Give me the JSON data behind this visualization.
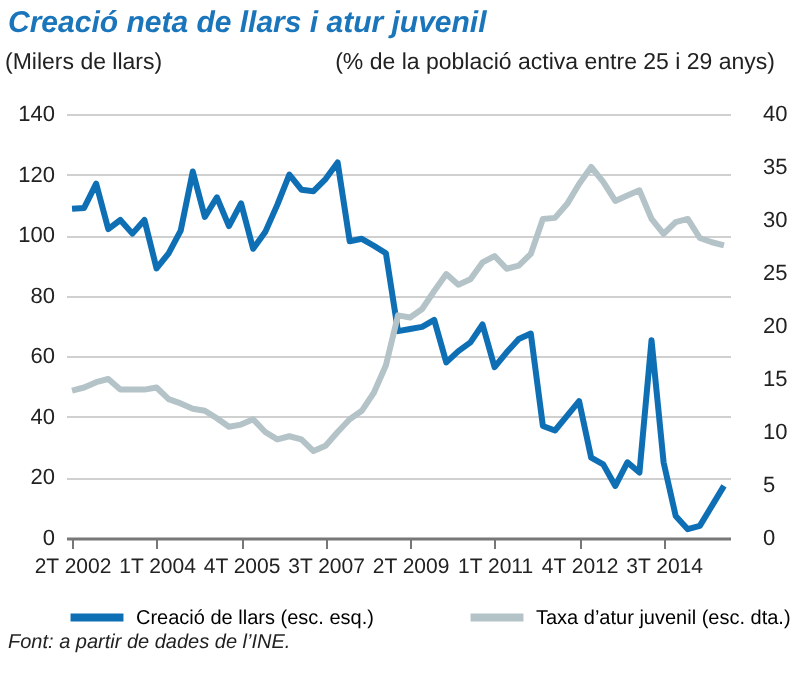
{
  "chart_data": {
    "type": "line",
    "title": "Creació neta de llars i atur juvenil",
    "ylabel": "(Milers de llars)",
    "y2label": "(% de la població activa entre 25 i 29 anys)",
    "categories": [
      "2T 2002",
      null,
      null,
      null,
      null,
      null,
      null,
      "1T 2004",
      null,
      null,
      null,
      null,
      null,
      null,
      "4T 2005",
      null,
      null,
      null,
      null,
      null,
      null,
      "3T 2007",
      null,
      null,
      null,
      null,
      null,
      null,
      "2T 2009",
      null,
      null,
      null,
      null,
      null,
      null,
      "1T 2011",
      null,
      null,
      null,
      null,
      null,
      null,
      "4T 2012",
      null,
      null,
      null,
      null,
      null,
      null,
      "3T 2014",
      null,
      null,
      null,
      null,
      null
    ],
    "series": [
      {
        "name": "Creació de llars (esc. esq.)",
        "color": "#0f6fb5",
        "values": [
          108.7,
          109,
          117,
          102,
          105,
          100.5,
          105,
          89,
          94,
          101.5,
          121,
          106,
          112.5,
          103,
          110.5,
          95.5,
          101,
          110,
          120,
          115,
          114.5,
          118.5,
          124,
          98,
          98.8,
          96.5,
          94,
          68.3,
          69,
          69.7,
          72,
          58,
          61.7,
          64.6,
          70.5,
          56.4,
          61.3,
          65.7,
          67.5,
          37,
          35.5,
          40.3,
          45.2,
          26.5,
          24.3,
          17.2,
          25,
          21.6,
          65.3,
          25,
          7.3,
          2.9,
          4,
          10.6,
          17.2
        ]
      },
      {
        "name": "Taxa d’atur juvenil (esc. dta.)",
        "color": "#b4c3c8",
        "axis": "y2",
        "values": [
          13.9,
          14.2,
          14.7,
          15,
          14,
          14,
          14,
          14.2,
          13.1,
          12.7,
          12.2,
          12,
          11.3,
          10.5,
          10.7,
          11.2,
          10,
          9.3,
          9.6,
          9.3,
          8.2,
          8.7,
          10,
          11.2,
          12,
          13.7,
          16.3,
          21,
          20.8,
          21.6,
          23.3,
          24.9,
          23.9,
          24.4,
          26,
          26.6,
          25.4,
          25.7,
          26.8,
          30.1,
          30.2,
          31.5,
          33.4,
          35,
          33.6,
          31.8,
          32.3,
          32.8,
          30.1,
          28.7,
          29.8,
          30.1,
          28.3,
          27.9,
          27.6
        ]
      }
    ],
    "ylim": [
      0,
      140
    ],
    "yticks": [
      0,
      20,
      40,
      60,
      80,
      100,
      120,
      140
    ],
    "y2lim": [
      0,
      40
    ],
    "y2ticks": [
      0,
      5,
      10,
      15,
      20,
      25,
      30,
      35,
      40
    ],
    "grid": "y",
    "legend": "bottom",
    "marker": "none",
    "line_style": "solid",
    "annotations": [
      "Font: a partir de dades de l’INE."
    ]
  }
}
